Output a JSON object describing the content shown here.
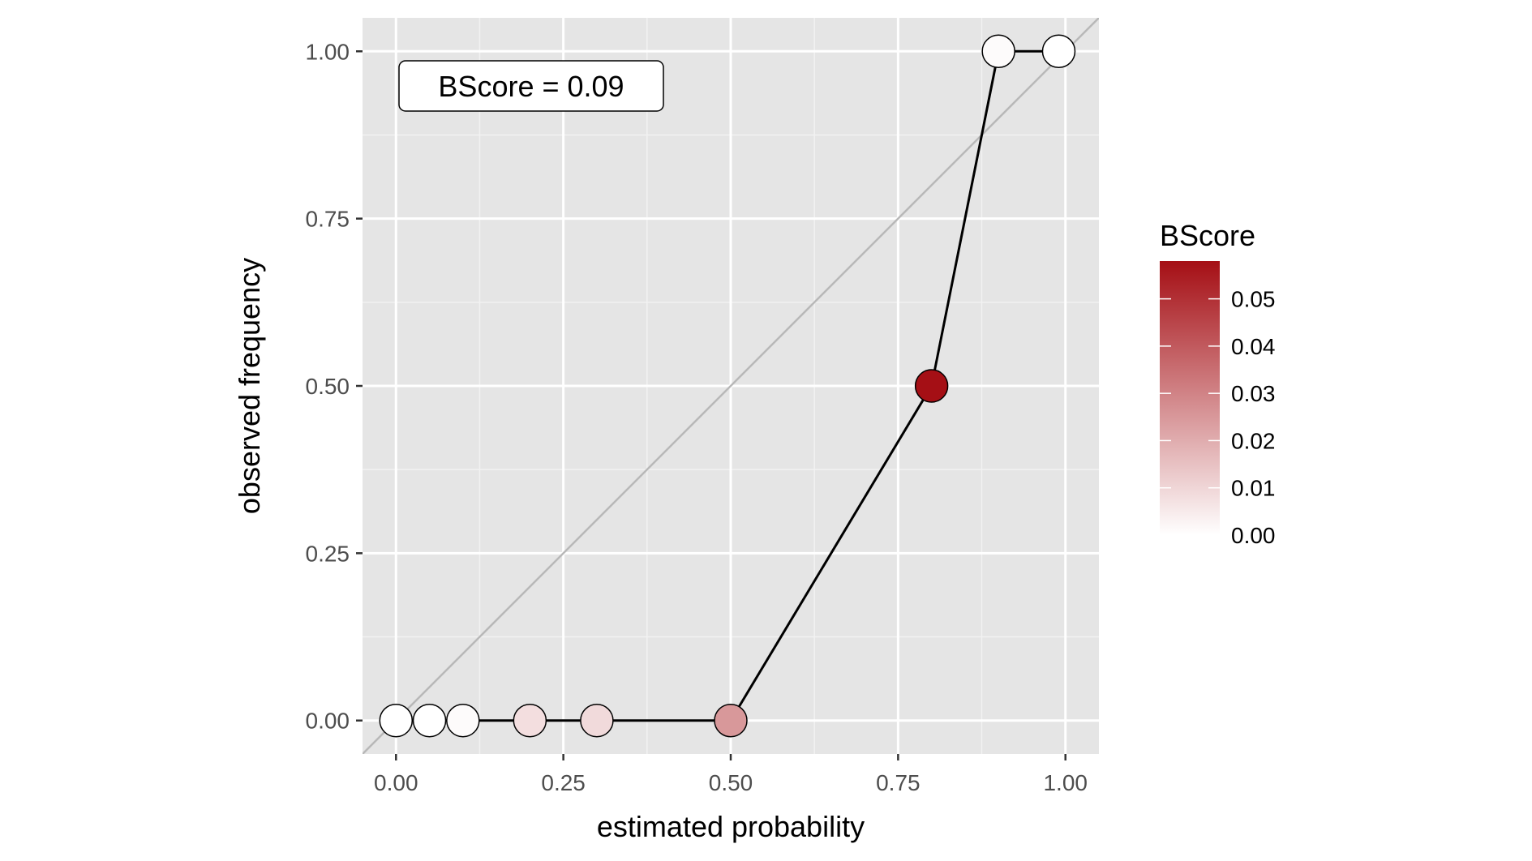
{
  "chart_data": {
    "type": "scatter",
    "xlabel": "estimated probability",
    "ylabel": "observed frequency",
    "xlim": [
      -0.05,
      1.05
    ],
    "ylim": [
      -0.05,
      1.05
    ],
    "x_ticks": [
      0.0,
      0.25,
      0.5,
      0.75,
      1.0
    ],
    "y_ticks": [
      0.0,
      0.25,
      0.5,
      0.75,
      1.0
    ],
    "x_tick_labels": [
      "0.00",
      "0.25",
      "0.50",
      "0.75",
      "1.00"
    ],
    "y_tick_labels": [
      "0.00",
      "0.25",
      "0.50",
      "0.75",
      "1.00"
    ],
    "grid": true,
    "panel_background": "#e5e5e5",
    "reference_line": {
      "type": "identity",
      "color": "#b8b8b8"
    },
    "annotation": "BScore = 0.09",
    "series": [
      {
        "x": [
          0.0,
          0.05,
          0.1,
          0.2,
          0.3,
          0.5,
          0.8,
          0.9,
          0.99
        ],
        "y": [
          0.0,
          0.0,
          0.0,
          0.0,
          0.0,
          0.0,
          0.5,
          1.0,
          1.0
        ],
        "bscore": [
          0.0,
          0.0,
          0.001,
          0.008,
          0.009,
          0.025,
          0.058,
          0.001,
          0.0
        ]
      }
    ],
    "legend": {
      "title": "BScore",
      "placement": "right",
      "range": [
        0.0,
        0.058
      ],
      "ticks": [
        0.0,
        0.01,
        0.02,
        0.03,
        0.04,
        0.05
      ],
      "tick_labels": [
        "0.00",
        "0.01",
        "0.02",
        "0.03",
        "0.04",
        "0.05"
      ],
      "color_low": "#ffffff",
      "color_high": "#a50f15"
    }
  }
}
